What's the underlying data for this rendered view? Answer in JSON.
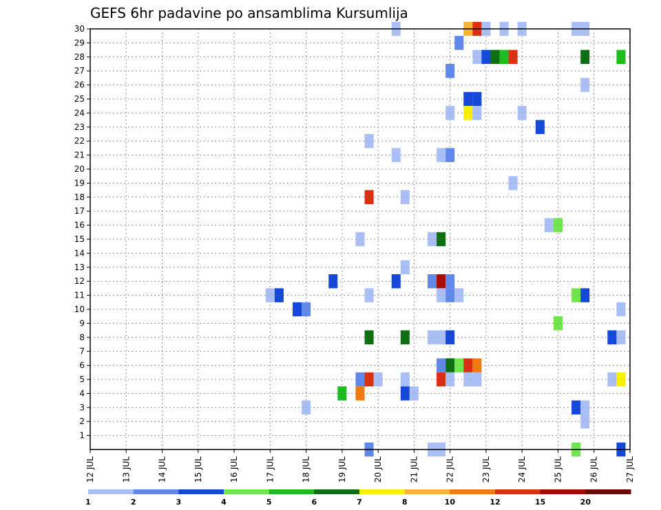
{
  "chart_data": {
    "type": "heatmap",
    "title": "GEFS 6hr padavine po ansamblima Kursumlija",
    "xlabel": "",
    "ylabel": "",
    "x_ticks": [
      "12 JUL",
      "13 JUL",
      "14 JUL",
      "15 JUL",
      "16 JUL",
      "17 JUL",
      "18 JUL",
      "19 JUL",
      "20 JUL",
      "21 JUL",
      "22 JUL",
      "23 JUL",
      "24 JUL",
      "25 JUL",
      "26 JUL",
      "27 JUL"
    ],
    "xlim": [
      0,
      60
    ],
    "y_ticks": [
      1,
      2,
      3,
      4,
      5,
      6,
      7,
      8,
      9,
      10,
      11,
      12,
      13,
      14,
      15,
      16,
      17,
      18,
      19,
      20,
      21,
      22,
      23,
      24,
      25,
      26,
      27,
      28,
      29,
      30
    ],
    "ylim": [
      0,
      30
    ],
    "grid": true,
    "legend": {
      "placement": "bottom",
      "levels": [
        "1",
        "2",
        "3",
        "4",
        "5",
        "6",
        "7",
        "8",
        "10",
        "12",
        "15",
        "20"
      ],
      "colors": [
        "#aabff5",
        "#5f88ea",
        "#1448d8",
        "#6ee64c",
        "#1ebc1e",
        "#0e6e12",
        "#f8f000",
        "#fbb236",
        "#f27a10",
        "#d83010",
        "#a80a06",
        "#6a0a04"
      ]
    },
    "cells": [
      {
        "x": 34,
        "y": 30,
        "c": 1
      },
      {
        "x": 42,
        "y": 30,
        "c": 8
      },
      {
        "x": 43,
        "y": 30,
        "c": 10
      },
      {
        "x": 44,
        "y": 30,
        "c": 1
      },
      {
        "x": 46,
        "y": 30,
        "c": 1
      },
      {
        "x": 48,
        "y": 30,
        "c": 1
      },
      {
        "x": 54,
        "y": 30,
        "c": 1
      },
      {
        "x": 55,
        "y": 30,
        "c": 1
      },
      {
        "x": 41,
        "y": 29,
        "c": 2
      },
      {
        "x": 43,
        "y": 28,
        "c": 1
      },
      {
        "x": 44,
        "y": 28,
        "c": 3
      },
      {
        "x": 45,
        "y": 28,
        "c": 6
      },
      {
        "x": 46,
        "y": 28,
        "c": 5
      },
      {
        "x": 47,
        "y": 28,
        "c": 10
      },
      {
        "x": 55,
        "y": 28,
        "c": 6
      },
      {
        "x": 59,
        "y": 28,
        "c": 5
      },
      {
        "x": 40,
        "y": 27,
        "c": 2
      },
      {
        "x": 55,
        "y": 26,
        "c": 1
      },
      {
        "x": 42,
        "y": 25,
        "c": 3
      },
      {
        "x": 43,
        "y": 25,
        "c": 3
      },
      {
        "x": 40,
        "y": 24,
        "c": 1
      },
      {
        "x": 42,
        "y": 24,
        "c": 7
      },
      {
        "x": 43,
        "y": 24,
        "c": 1
      },
      {
        "x": 48,
        "y": 24,
        "c": 1
      },
      {
        "x": 50,
        "y": 23,
        "c": 3
      },
      {
        "x": 31,
        "y": 22,
        "c": 1
      },
      {
        "x": 34,
        "y": 21,
        "c": 1
      },
      {
        "x": 39,
        "y": 21,
        "c": 1
      },
      {
        "x": 40,
        "y": 21,
        "c": 2
      },
      {
        "x": 47,
        "y": 19,
        "c": 1
      },
      {
        "x": 31,
        "y": 18,
        "c": 10
      },
      {
        "x": 35,
        "y": 18,
        "c": 1
      },
      {
        "x": 51,
        "y": 16,
        "c": 1
      },
      {
        "x": 52,
        "y": 16,
        "c": 4
      },
      {
        "x": 30,
        "y": 15,
        "c": 1
      },
      {
        "x": 38,
        "y": 15,
        "c": 1
      },
      {
        "x": 39,
        "y": 15,
        "c": 6
      },
      {
        "x": 35,
        "y": 13,
        "c": 1
      },
      {
        "x": 27,
        "y": 12,
        "c": 3
      },
      {
        "x": 34,
        "y": 12,
        "c": 3
      },
      {
        "x": 38,
        "y": 12,
        "c": 2
      },
      {
        "x": 39,
        "y": 12,
        "c": 11
      },
      {
        "x": 40,
        "y": 12,
        "c": 2
      },
      {
        "x": 20,
        "y": 11,
        "c": 1
      },
      {
        "x": 21,
        "y": 11,
        "c": 3
      },
      {
        "x": 31,
        "y": 11,
        "c": 1
      },
      {
        "x": 39,
        "y": 11,
        "c": 1
      },
      {
        "x": 40,
        "y": 11,
        "c": 2
      },
      {
        "x": 41,
        "y": 11,
        "c": 1
      },
      {
        "x": 54,
        "y": 11,
        "c": 4
      },
      {
        "x": 55,
        "y": 11,
        "c": 3
      },
      {
        "x": 23,
        "y": 10,
        "c": 3
      },
      {
        "x": 24,
        "y": 10,
        "c": 2
      },
      {
        "x": 59,
        "y": 10,
        "c": 1
      },
      {
        "x": 52,
        "y": 9,
        "c": 4
      },
      {
        "x": 31,
        "y": 8,
        "c": 6
      },
      {
        "x": 35,
        "y": 8,
        "c": 6
      },
      {
        "x": 38,
        "y": 8,
        "c": 1
      },
      {
        "x": 39,
        "y": 8,
        "c": 1
      },
      {
        "x": 40,
        "y": 8,
        "c": 3
      },
      {
        "x": 58,
        "y": 8,
        "c": 3
      },
      {
        "x": 59,
        "y": 8,
        "c": 1
      },
      {
        "x": 39,
        "y": 6,
        "c": 2
      },
      {
        "x": 40,
        "y": 6,
        "c": 6
      },
      {
        "x": 41,
        "y": 6,
        "c": 4
      },
      {
        "x": 42,
        "y": 6,
        "c": 10
      },
      {
        "x": 43,
        "y": 6,
        "c": 9
      },
      {
        "x": 30,
        "y": 5,
        "c": 2
      },
      {
        "x": 31,
        "y": 5,
        "c": 10
      },
      {
        "x": 32,
        "y": 5,
        "c": 1
      },
      {
        "x": 35,
        "y": 5,
        "c": 1
      },
      {
        "x": 39,
        "y": 5,
        "c": 10
      },
      {
        "x": 40,
        "y": 5,
        "c": 1
      },
      {
        "x": 42,
        "y": 5,
        "c": 1
      },
      {
        "x": 43,
        "y": 5,
        "c": 1
      },
      {
        "x": 58,
        "y": 5,
        "c": 1
      },
      {
        "x": 59,
        "y": 5,
        "c": 7
      },
      {
        "x": 28,
        "y": 4,
        "c": 5
      },
      {
        "x": 30,
        "y": 4,
        "c": 9
      },
      {
        "x": 35,
        "y": 4,
        "c": 3
      },
      {
        "x": 36,
        "y": 4,
        "c": 1
      },
      {
        "x": 24,
        "y": 3,
        "c": 1
      },
      {
        "x": 54,
        "y": 3,
        "c": 3
      },
      {
        "x": 55,
        "y": 3,
        "c": 1
      },
      {
        "x": 55,
        "y": 2,
        "c": 1
      },
      {
        "x": 31,
        "y": 0,
        "c": 2
      },
      {
        "x": 38,
        "y": 0,
        "c": 1
      },
      {
        "x": 39,
        "y": 0,
        "c": 1
      },
      {
        "x": 54,
        "y": 0,
        "c": 4
      },
      {
        "x": 59,
        "y": 0,
        "c": 3
      }
    ]
  }
}
